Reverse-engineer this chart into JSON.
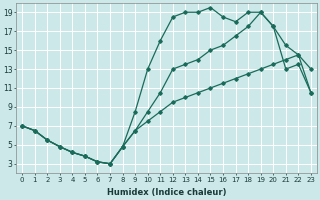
{
  "xlabel": "Humidex (Indice chaleur)",
  "ylabel": "",
  "bg_color": "#cce8e8",
  "line_color": "#1a6b5a",
  "grid_color": "#ffffff",
  "xlim": [
    -0.5,
    23.5
  ],
  "ylim": [
    2,
    20
  ],
  "xticks": [
    0,
    1,
    2,
    3,
    4,
    5,
    6,
    7,
    8,
    9,
    10,
    11,
    12,
    13,
    14,
    15,
    16,
    17,
    18,
    19,
    20,
    21,
    22,
    23
  ],
  "yticks": [
    3,
    5,
    7,
    9,
    11,
    13,
    15,
    17,
    19
  ],
  "line1_x": [
    0,
    1,
    2,
    3,
    4,
    5,
    6,
    7,
    8,
    9,
    10,
    11,
    12,
    13,
    14,
    15,
    16,
    17,
    18,
    19,
    20,
    21,
    22,
    23
  ],
  "line1_y": [
    7.0,
    6.5,
    5.5,
    4.8,
    4.2,
    3.8,
    3.2,
    3.0,
    4.8,
    8.5,
    13.0,
    16.0,
    18.5,
    19.0,
    19.0,
    19.5,
    18.5,
    18.0,
    19.0,
    19.0,
    17.5,
    13.0,
    13.5,
    10.5
  ],
  "line2_x": [
    0,
    1,
    2,
    3,
    4,
    5,
    6,
    7,
    8,
    9,
    10,
    11,
    12,
    13,
    14,
    15,
    16,
    17,
    18,
    19,
    20,
    21,
    22,
    23
  ],
  "line2_y": [
    7.0,
    6.5,
    5.5,
    4.8,
    4.2,
    3.8,
    3.2,
    3.0,
    4.8,
    6.5,
    8.5,
    10.5,
    13.0,
    13.5,
    14.0,
    15.0,
    15.5,
    16.5,
    17.5,
    19.0,
    17.5,
    15.5,
    14.5,
    13.0
  ],
  "line3_x": [
    0,
    1,
    2,
    3,
    4,
    5,
    6,
    7,
    8,
    9,
    10,
    11,
    12,
    13,
    14,
    15,
    16,
    17,
    18,
    19,
    20,
    21,
    22,
    23
  ],
  "line3_y": [
    7.0,
    6.5,
    5.5,
    4.8,
    4.2,
    3.8,
    3.2,
    3.0,
    4.8,
    6.5,
    7.5,
    8.5,
    9.5,
    10.0,
    10.5,
    11.0,
    11.5,
    12.0,
    12.5,
    13.0,
    13.5,
    14.0,
    14.5,
    10.5
  ],
  "marker": "D",
  "markersize": 1.8,
  "linewidth": 0.9
}
